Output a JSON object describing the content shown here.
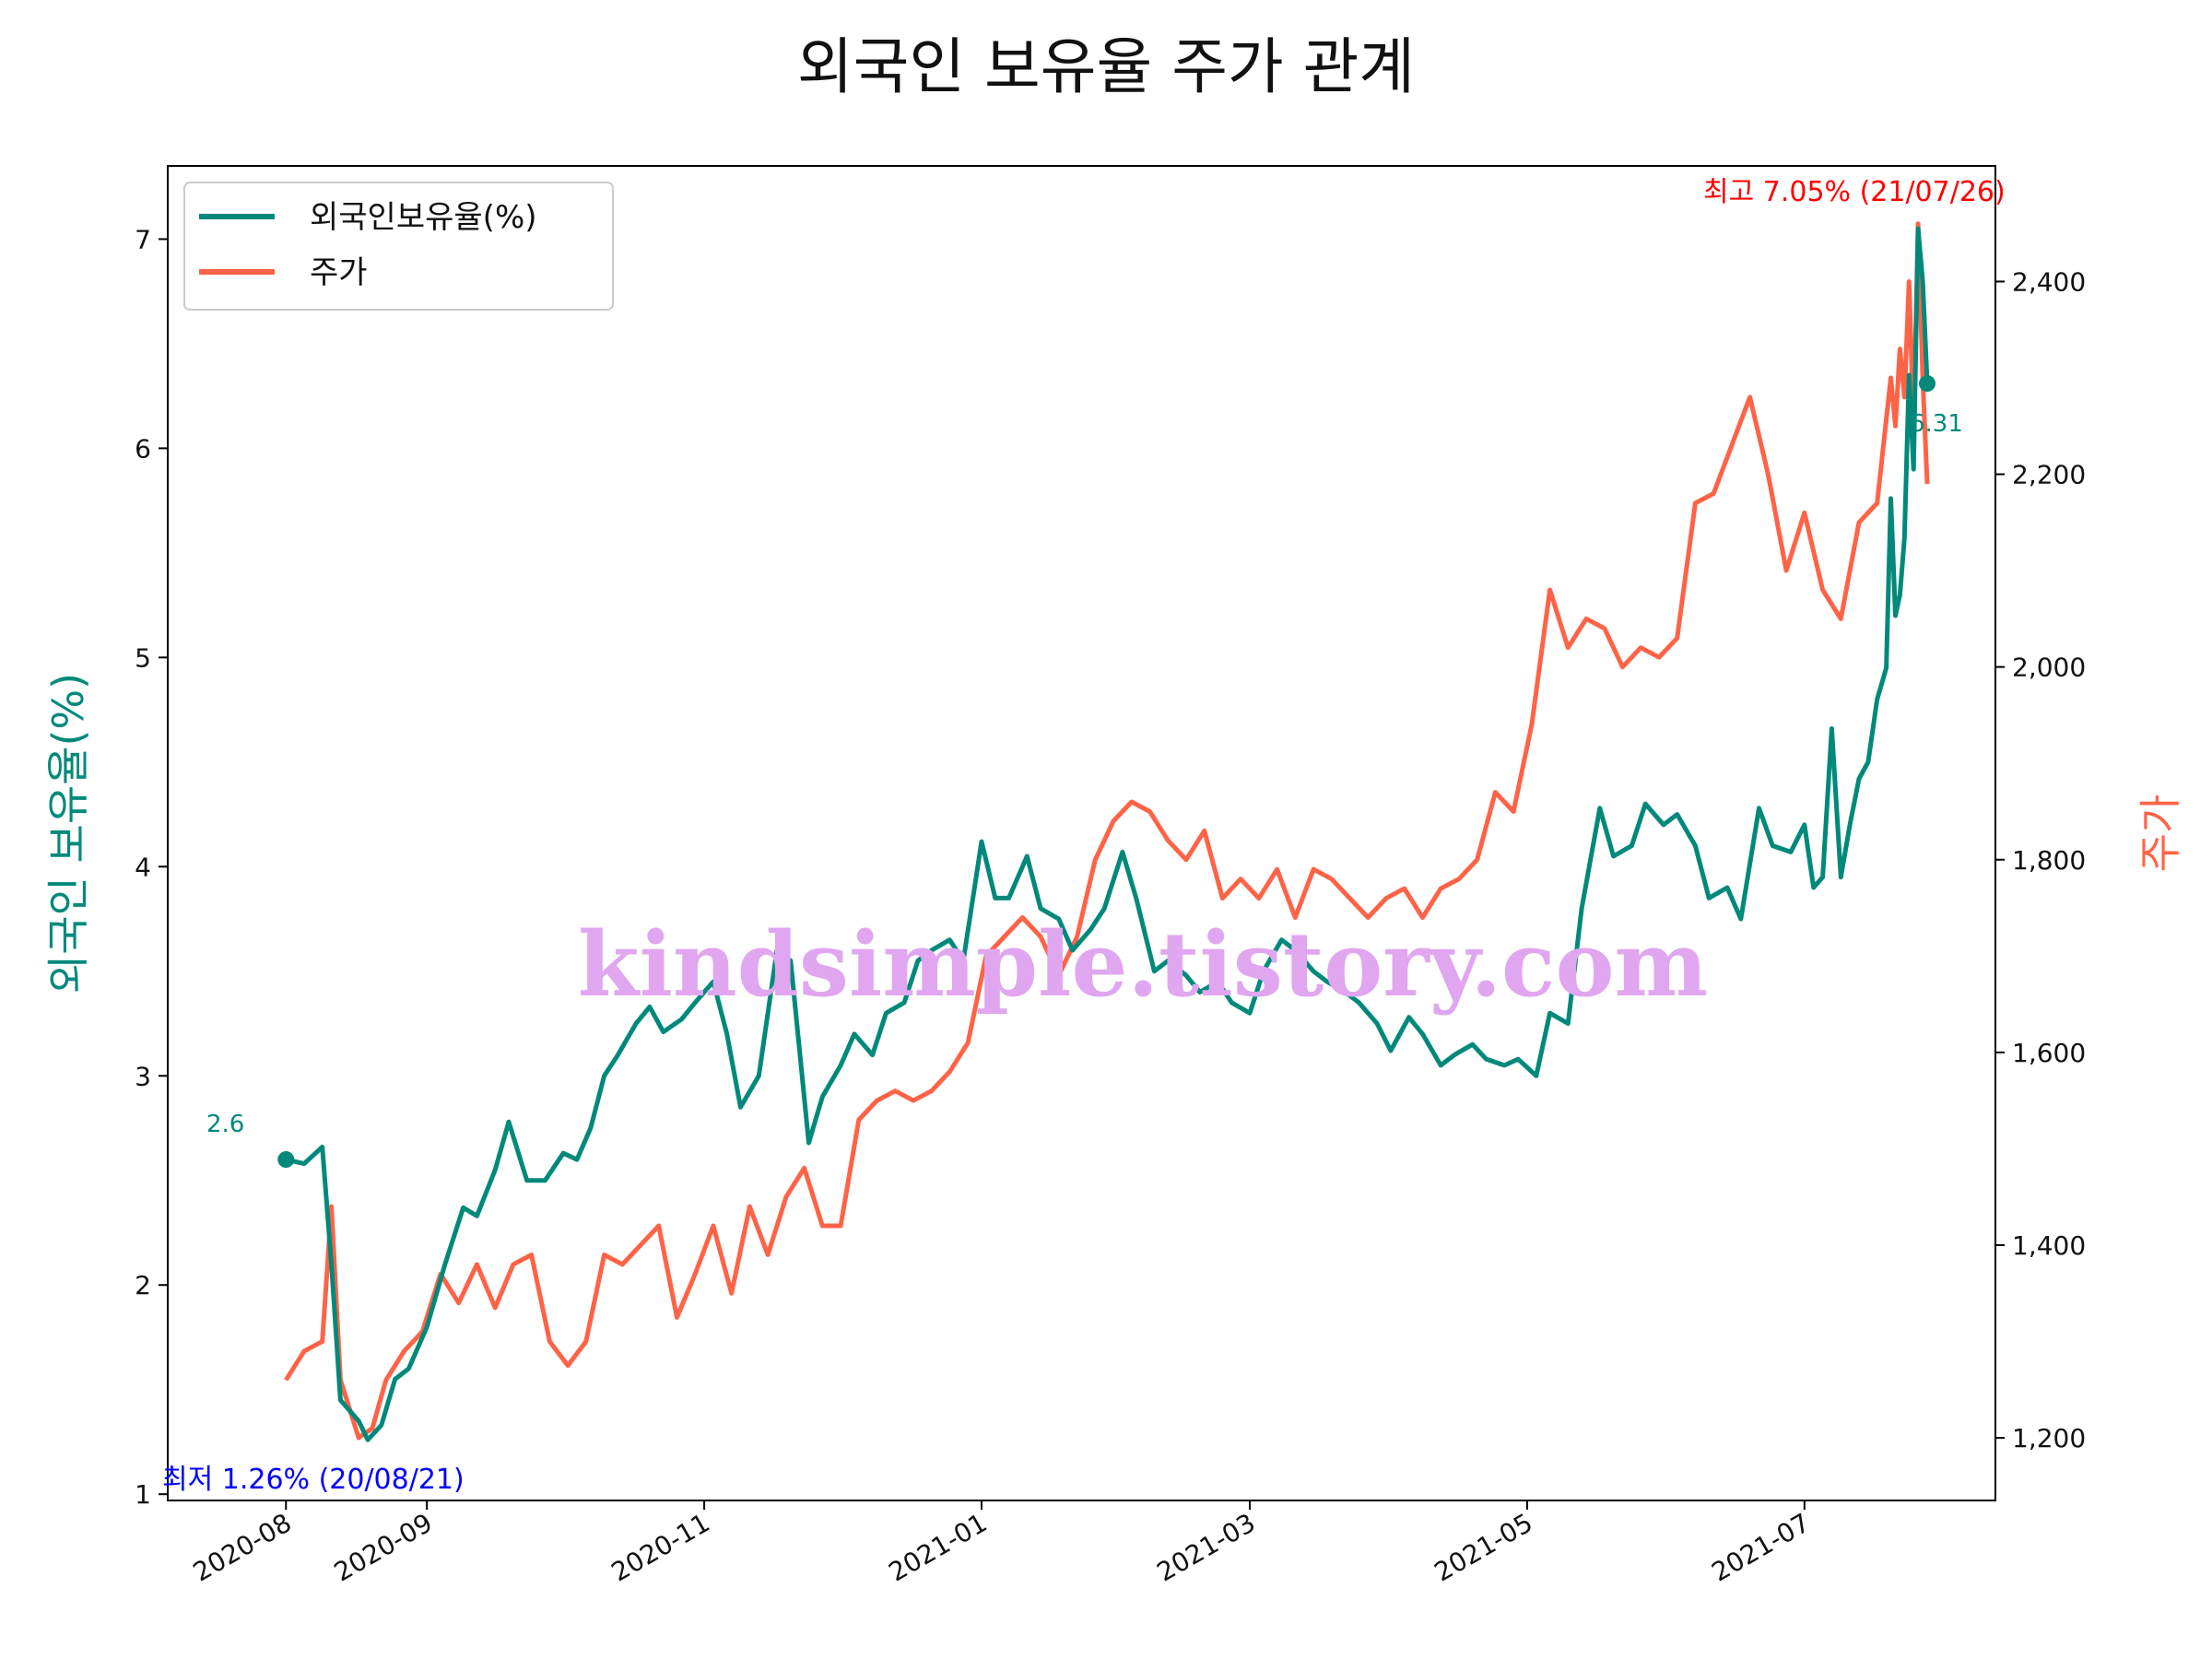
{
  "chart_data": {
    "type": "line",
    "title": "외국인 보유율 주가 관계",
    "ylabel_left": "외국인 보유율(%)",
    "ylabel_right": "주가",
    "x_ticks": [
      "2020-08",
      "2020-09",
      "2020-11",
      "2021-01",
      "2021-03",
      "2021-05",
      "2021-07"
    ],
    "y_left_ticks": [
      1,
      2,
      3,
      4,
      5,
      6,
      7
    ],
    "y_right_ticks": [
      "1,200",
      "1,400",
      "1,600",
      "1,800",
      "2,000",
      "2,200",
      "2,400"
    ],
    "y_left_range": [
      0.97,
      7.35
    ],
    "y_right_range": [
      1135,
      2520
    ],
    "legend": {
      "position": "upper-left",
      "entries": [
        "외국인보유율(%)",
        "주가"
      ]
    },
    "colors": {
      "holding": "#00897b",
      "price": "#ff6347",
      "min": "#0000ff",
      "max": "#ff0000"
    },
    "annotations": {
      "min_label": "최저 1.26% (20/08/21)",
      "max_label": "최고 7.05% (21/07/26)",
      "start_label": "2.6",
      "end_label": "6.31",
      "watermark": "kindsimple.tistory.com"
    },
    "series": [
      {
        "name": "외국인보유율(%)",
        "points": [
          [
            "2020-08-01",
            2.6
          ],
          [
            "2020-08-05",
            2.58
          ],
          [
            "2020-08-09",
            2.66
          ],
          [
            "2020-08-11",
            2.1
          ],
          [
            "2020-08-13",
            1.45
          ],
          [
            "2020-08-17",
            1.35
          ],
          [
            "2020-08-19",
            1.26
          ],
          [
            "2020-08-22",
            1.33
          ],
          [
            "2020-08-25",
            1.55
          ],
          [
            "2020-08-28",
            1.6
          ],
          [
            "2020-09-01",
            1.8
          ],
          [
            "2020-09-05",
            2.1
          ],
          [
            "2020-09-09",
            2.37
          ],
          [
            "2020-09-12",
            2.33
          ],
          [
            "2020-09-16",
            2.55
          ],
          [
            "2020-09-19",
            2.78
          ],
          [
            "2020-09-23",
            2.5
          ],
          [
            "2020-09-27",
            2.5
          ],
          [
            "2020-10-01",
            2.63
          ],
          [
            "2020-10-04",
            2.6
          ],
          [
            "2020-10-07",
            2.75
          ],
          [
            "2020-10-10",
            3.0
          ],
          [
            "2020-10-13",
            3.1
          ],
          [
            "2020-10-17",
            3.25
          ],
          [
            "2020-10-20",
            3.33
          ],
          [
            "2020-10-23",
            3.21
          ],
          [
            "2020-10-27",
            3.27
          ],
          [
            "2020-10-30",
            3.35
          ],
          [
            "2020-11-03",
            3.45
          ],
          [
            "2020-11-06",
            3.2
          ],
          [
            "2020-11-09",
            2.85
          ],
          [
            "2020-11-13",
            3.0
          ],
          [
            "2020-11-17",
            3.6
          ],
          [
            "2020-11-20",
            3.55
          ],
          [
            "2020-11-24",
            2.68
          ],
          [
            "2020-11-27",
            2.9
          ],
          [
            "2020-12-01",
            3.05
          ],
          [
            "2020-12-04",
            3.2
          ],
          [
            "2020-12-08",
            3.1
          ],
          [
            "2020-12-11",
            3.3
          ],
          [
            "2020-12-15",
            3.35
          ],
          [
            "2020-12-18",
            3.55
          ],
          [
            "2020-12-21",
            3.6
          ],
          [
            "2020-12-25",
            3.65
          ],
          [
            "2020-12-28",
            3.55
          ],
          [
            "2021-01-01",
            4.12
          ],
          [
            "2021-01-04",
            3.85
          ],
          [
            "2021-01-07",
            3.85
          ],
          [
            "2021-01-11",
            4.05
          ],
          [
            "2021-01-14",
            3.8
          ],
          [
            "2021-01-18",
            3.75
          ],
          [
            "2021-01-21",
            3.6
          ],
          [
            "2021-01-25",
            3.7
          ],
          [
            "2021-01-28",
            3.8
          ],
          [
            "2021-02-01",
            4.07
          ],
          [
            "2021-02-04",
            3.85
          ],
          [
            "2021-02-08",
            3.5
          ],
          [
            "2021-02-11",
            3.55
          ],
          [
            "2021-02-15",
            3.48
          ],
          [
            "2021-02-18",
            3.4
          ],
          [
            "2021-02-22",
            3.45
          ],
          [
            "2021-02-25",
            3.35
          ],
          [
            "2021-03-01",
            3.3
          ],
          [
            "2021-03-04",
            3.5
          ],
          [
            "2021-03-08",
            3.65
          ],
          [
            "2021-03-11",
            3.6
          ],
          [
            "2021-03-15",
            3.5
          ],
          [
            "2021-03-18",
            3.45
          ],
          [
            "2021-03-22",
            3.4
          ],
          [
            "2021-03-25",
            3.35
          ],
          [
            "2021-03-29",
            3.25
          ],
          [
            "2021-04-01",
            3.12
          ],
          [
            "2021-04-05",
            3.28
          ],
          [
            "2021-04-08",
            3.2
          ],
          [
            "2021-04-12",
            3.05
          ],
          [
            "2021-04-15",
            3.1
          ],
          [
            "2021-04-19",
            3.15
          ],
          [
            "2021-04-22",
            3.08
          ],
          [
            "2021-04-26",
            3.05
          ],
          [
            "2021-04-29",
            3.08
          ],
          [
            "2021-05-03",
            3.0
          ],
          [
            "2021-05-06",
            3.3
          ],
          [
            "2021-05-10",
            3.25
          ],
          [
            "2021-05-13",
            3.8
          ],
          [
            "2021-05-17",
            4.28
          ],
          [
            "2021-05-20",
            4.05
          ],
          [
            "2021-05-24",
            4.1
          ],
          [
            "2021-05-27",
            4.3
          ],
          [
            "2021-05-31",
            4.2
          ],
          [
            "2021-06-03",
            4.25
          ],
          [
            "2021-06-07",
            4.1
          ],
          [
            "2021-06-10",
            3.85
          ],
          [
            "2021-06-14",
            3.9
          ],
          [
            "2021-06-17",
            3.75
          ],
          [
            "2021-06-21",
            4.28
          ],
          [
            "2021-06-24",
            4.1
          ],
          [
            "2021-06-28",
            4.07
          ],
          [
            "2021-07-01",
            4.2
          ],
          [
            "2021-07-03",
            3.9
          ],
          [
            "2021-07-05",
            3.95
          ],
          [
            "2021-07-07",
            4.66
          ],
          [
            "2021-07-09",
            3.95
          ],
          [
            "2021-07-11",
            4.2
          ],
          [
            "2021-07-13",
            4.42
          ],
          [
            "2021-07-15",
            4.5
          ],
          [
            "2021-07-17",
            4.8
          ],
          [
            "2021-07-19",
            4.95
          ],
          [
            "2021-07-20",
            5.76
          ],
          [
            "2021-07-21",
            5.2
          ],
          [
            "2021-07-22",
            5.3
          ],
          [
            "2021-07-23",
            5.57
          ],
          [
            "2021-07-24",
            6.35
          ],
          [
            "2021-07-25",
            5.9
          ],
          [
            "2021-07-26",
            7.05
          ],
          [
            "2021-07-27",
            6.8
          ],
          [
            "2021-07-28",
            6.31
          ]
        ]
      },
      {
        "name": "주가",
        "points": [
          [
            "2020-08-01",
            1260
          ],
          [
            "2020-08-05",
            1290
          ],
          [
            "2020-08-09",
            1300
          ],
          [
            "2020-08-11",
            1440
          ],
          [
            "2020-08-13",
            1260
          ],
          [
            "2020-08-17",
            1200
          ],
          [
            "2020-08-20",
            1210
          ],
          [
            "2020-08-23",
            1260
          ],
          [
            "2020-08-27",
            1290
          ],
          [
            "2020-08-31",
            1310
          ],
          [
            "2020-09-04",
            1370
          ],
          [
            "2020-09-08",
            1340
          ],
          [
            "2020-09-12",
            1380
          ],
          [
            "2020-09-16",
            1335
          ],
          [
            "2020-09-20",
            1380
          ],
          [
            "2020-09-24",
            1390
          ],
          [
            "2020-09-28",
            1300
          ],
          [
            "2020-10-02",
            1275
          ],
          [
            "2020-10-06",
            1300
          ],
          [
            "2020-10-10",
            1390
          ],
          [
            "2020-10-14",
            1380
          ],
          [
            "2020-10-18",
            1400
          ],
          [
            "2020-10-22",
            1420
          ],
          [
            "2020-10-26",
            1325
          ],
          [
            "2020-10-30",
            1370
          ],
          [
            "2020-11-03",
            1420
          ],
          [
            "2020-11-07",
            1350
          ],
          [
            "2020-11-11",
            1440
          ],
          [
            "2020-11-15",
            1390
          ],
          [
            "2020-11-19",
            1450
          ],
          [
            "2020-11-23",
            1480
          ],
          [
            "2020-11-27",
            1420
          ],
          [
            "2020-12-01",
            1420
          ],
          [
            "2020-12-05",
            1530
          ],
          [
            "2020-12-09",
            1550
          ],
          [
            "2020-12-13",
            1560
          ],
          [
            "2020-12-17",
            1550
          ],
          [
            "2020-12-21",
            1560
          ],
          [
            "2020-12-25",
            1580
          ],
          [
            "2020-12-29",
            1610
          ],
          [
            "2021-01-02",
            1700
          ],
          [
            "2021-01-06",
            1720
          ],
          [
            "2021-01-10",
            1740
          ],
          [
            "2021-01-14",
            1720
          ],
          [
            "2021-01-18",
            1680
          ],
          [
            "2021-01-22",
            1720
          ],
          [
            "2021-01-26",
            1800
          ],
          [
            "2021-01-30",
            1840
          ],
          [
            "2021-02-03",
            1860
          ],
          [
            "2021-02-07",
            1850
          ],
          [
            "2021-02-11",
            1820
          ],
          [
            "2021-02-15",
            1800
          ],
          [
            "2021-02-19",
            1830
          ],
          [
            "2021-02-23",
            1760
          ],
          [
            "2021-02-27",
            1780
          ],
          [
            "2021-03-03",
            1760
          ],
          [
            "2021-03-07",
            1790
          ],
          [
            "2021-03-11",
            1740
          ],
          [
            "2021-03-15",
            1790
          ],
          [
            "2021-03-19",
            1780
          ],
          [
            "2021-03-23",
            1760
          ],
          [
            "2021-03-27",
            1740
          ],
          [
            "2021-03-31",
            1760
          ],
          [
            "2021-04-04",
            1770
          ],
          [
            "2021-04-08",
            1740
          ],
          [
            "2021-04-12",
            1770
          ],
          [
            "2021-04-16",
            1780
          ],
          [
            "2021-04-20",
            1800
          ],
          [
            "2021-04-24",
            1870
          ],
          [
            "2021-04-28",
            1850
          ],
          [
            "2021-05-02",
            1940
          ],
          [
            "2021-05-06",
            2080
          ],
          [
            "2021-05-10",
            2020
          ],
          [
            "2021-05-14",
            2050
          ],
          [
            "2021-05-18",
            2040
          ],
          [
            "2021-05-22",
            2000
          ],
          [
            "2021-05-26",
            2020
          ],
          [
            "2021-05-30",
            2010
          ],
          [
            "2021-06-03",
            2030
          ],
          [
            "2021-06-07",
            2170
          ],
          [
            "2021-06-11",
            2180
          ],
          [
            "2021-06-15",
            2230
          ],
          [
            "2021-06-19",
            2280
          ],
          [
            "2021-06-23",
            2200
          ],
          [
            "2021-06-27",
            2100
          ],
          [
            "2021-07-01",
            2160
          ],
          [
            "2021-07-05",
            2080
          ],
          [
            "2021-07-09",
            2050
          ],
          [
            "2021-07-13",
            2150
          ],
          [
            "2021-07-17",
            2170
          ],
          [
            "2021-07-20",
            2300
          ],
          [
            "2021-07-21",
            2250
          ],
          [
            "2021-07-22",
            2330
          ],
          [
            "2021-07-23",
            2280
          ],
          [
            "2021-07-24",
            2400
          ],
          [
            "2021-07-25",
            2250
          ],
          [
            "2021-07-26",
            2460
          ],
          [
            "2021-07-27",
            2300
          ],
          [
            "2021-07-28",
            2190
          ]
        ]
      }
    ]
  }
}
